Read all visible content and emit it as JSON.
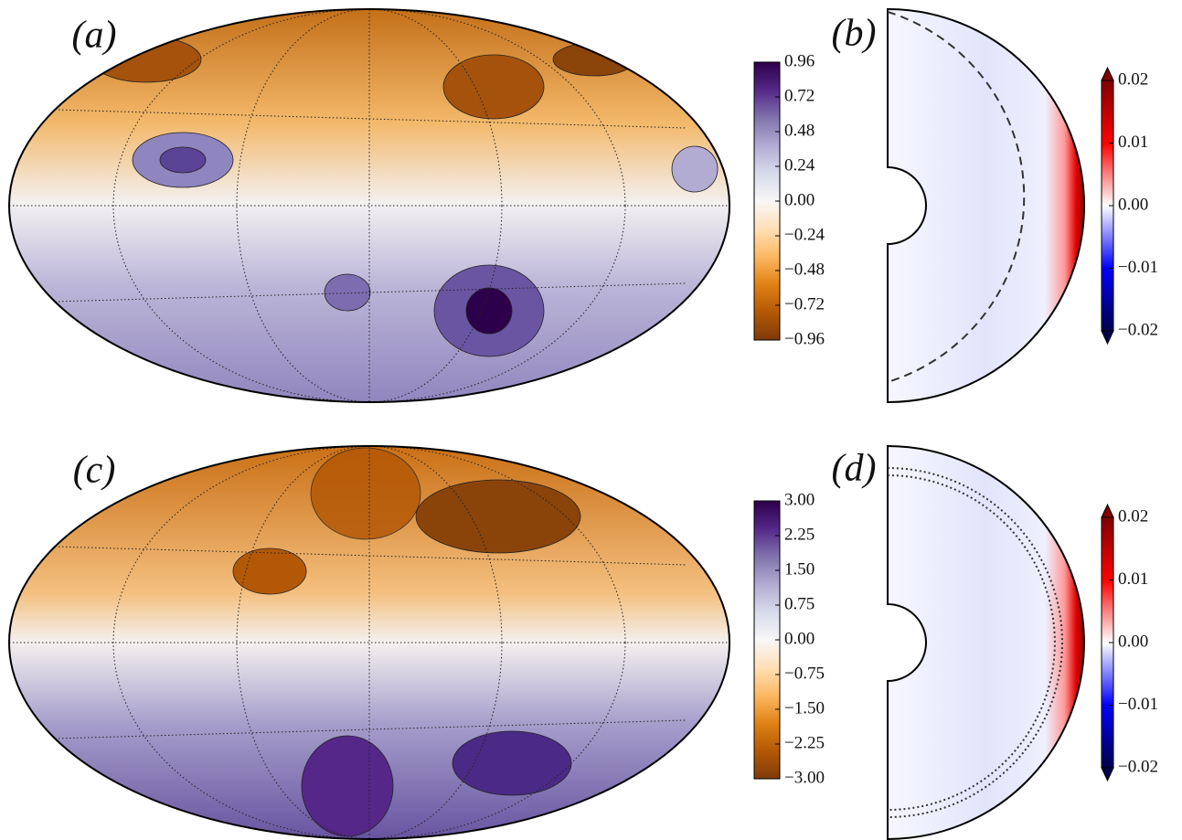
{
  "chart_data": [
    {
      "type": "map",
      "label": "(a)",
      "colormap": [
        "#7f3b08",
        "#b35806",
        "#e08214",
        "#fdb863",
        "#fee0b6",
        "#f7f7f7",
        "#d8daeb",
        "#b2abd2",
        "#8073ac",
        "#542788",
        "#2d004b"
      ],
      "ylim": [
        -0.96,
        0.96
      ],
      "yticks": [
        0.96,
        0.72,
        0.48,
        0.24,
        {
          "value": 0,
          "label": "0.00"
        },
        {
          "value": -0.24,
          "label": "−0.24"
        },
        {
          "value": -0.48,
          "label": "−0.48"
        },
        {
          "value": -0.72,
          "label": "−0.72"
        },
        {
          "value": -0.96,
          "label": "−0.96"
        }
      ]
    },
    {
      "type": "meridional",
      "label": "(b)",
      "colormap": [
        "#00004c",
        "#0000ff",
        "#ffffff",
        "#ff0000",
        "#800000"
      ],
      "ylim": [
        -0.02,
        0.02
      ],
      "yticks": [
        0.02,
        0.01,
        {
          "value": 0,
          "label": "0.00"
        },
        {
          "value": -0.01,
          "label": "−0.01"
        },
        {
          "value": -0.02,
          "label": "−0.02"
        }
      ]
    },
    {
      "type": "map",
      "label": "(c)",
      "colormap": [
        "#7f3b08",
        "#b35806",
        "#e08214",
        "#fdb863",
        "#fee0b6",
        "#f7f7f7",
        "#d8daeb",
        "#b2abd2",
        "#8073ac",
        "#542788",
        "#2d004b"
      ],
      "ylim": [
        -3,
        3
      ],
      "yticks": [
        {
          "value": 3,
          "label": "3.00"
        },
        2.25,
        {
          "value": 1.5,
          "label": "1.50"
        },
        0.75,
        {
          "value": 0,
          "label": "0.00"
        },
        {
          "value": -0.75,
          "label": "−0.75"
        },
        {
          "value": -1.5,
          "label": "−1.50"
        },
        {
          "value": -2.25,
          "label": "−2.25"
        },
        {
          "value": -3,
          "label": "−3.00"
        }
      ]
    },
    {
      "type": "meridional",
      "label": "(d)",
      "colormap": [
        "#00004c",
        "#0000ff",
        "#ffffff",
        "#ff0000",
        "#800000"
      ],
      "ylim": [
        -0.02,
        0.02
      ],
      "yticks": [
        0.02,
        0.01,
        {
          "value": 0,
          "label": "0.00"
        },
        {
          "value": -0.01,
          "label": "−0.01"
        },
        {
          "value": -0.02,
          "label": "−0.02"
        }
      ]
    }
  ]
}
